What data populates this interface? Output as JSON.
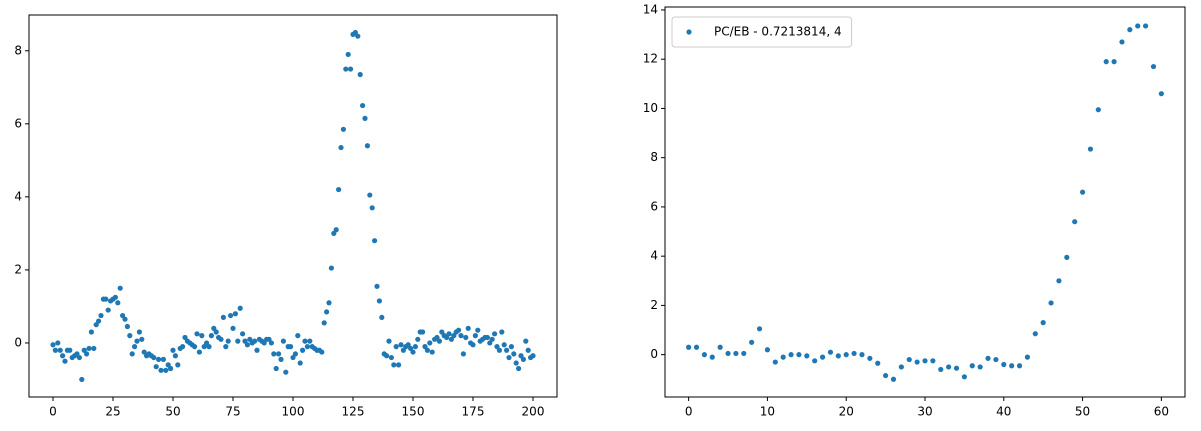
{
  "chart_data": [
    {
      "type": "scatter",
      "legend": false,
      "xlim": [
        -10,
        210
      ],
      "ylim": [
        -1.48,
        8.98
      ],
      "xticks": [
        0,
        25,
        50,
        75,
        100,
        125,
        150,
        175,
        200
      ],
      "yticks": [
        0,
        2,
        4,
        6,
        8
      ],
      "series": [
        {
          "color": "#1f77b4",
          "x": [
            0,
            1,
            2,
            3,
            4,
            5,
            6,
            7,
            8,
            9,
            10,
            11,
            12,
            13,
            14,
            15,
            16,
            17,
            18,
            19,
            20,
            21,
            22,
            23,
            24,
            25,
            26,
            27,
            28,
            29,
            30,
            31,
            32,
            33,
            34,
            35,
            36,
            37,
            38,
            39,
            40,
            41,
            42,
            43,
            44,
            45,
            46,
            47,
            48,
            49,
            50,
            51,
            52,
            53,
            54,
            55,
            56,
            57,
            58,
            59,
            60,
            61,
            62,
            63,
            64,
            65,
            66,
            67,
            68,
            69,
            70,
            71,
            72,
            73,
            74,
            75,
            76,
            77,
            78,
            79,
            80,
            81,
            82,
            83,
            84,
            85,
            86,
            87,
            88,
            89,
            90,
            91,
            92,
            93,
            94,
            95,
            96,
            97,
            98,
            99,
            100,
            101,
            102,
            103,
            104,
            105,
            106,
            107,
            108,
            109,
            110,
            111,
            112,
            113,
            114,
            115,
            116,
            117,
            118,
            119,
            120,
            121,
            122,
            123,
            124,
            125,
            126,
            127,
            128,
            129,
            130,
            131,
            132,
            133,
            134,
            135,
            136,
            137,
            138,
            139,
            140,
            141,
            142,
            143,
            144,
            145,
            146,
            147,
            148,
            149,
            150,
            151,
            152,
            153,
            154,
            155,
            156,
            157,
            158,
            159,
            160,
            161,
            162,
            163,
            164,
            165,
            166,
            167,
            168,
            169,
            170,
            171,
            172,
            173,
            174,
            175,
            176,
            177,
            178,
            179,
            180,
            181,
            182,
            183,
            184,
            185,
            186,
            187,
            188,
            189,
            190,
            191,
            192,
            193,
            194,
            195,
            196,
            197,
            198,
            199,
            200
          ],
          "values": [
            -0.05,
            -0.2,
            0,
            -0.2,
            -0.35,
            -0.5,
            -0.2,
            -0.2,
            -0.4,
            -0.35,
            -0.3,
            -0.4,
            -1.0,
            -0.2,
            -0.3,
            -0.15,
            0.3,
            -0.15,
            0.5,
            0.6,
            0.75,
            1.2,
            1.2,
            0.9,
            1.15,
            1.2,
            1.25,
            1.1,
            1.5,
            0.75,
            0.65,
            0.45,
            0.2,
            -0.3,
            -0.1,
            0.05,
            0.3,
            0.1,
            -0.25,
            -0.35,
            -0.3,
            -0.35,
            -0.4,
            -0.65,
            -0.45,
            -0.75,
            -0.45,
            -0.75,
            -0.6,
            -0.7,
            -0.2,
            -0.35,
            -0.6,
            -0.15,
            -0.1,
            0.15,
            0.05,
            0,
            -0.05,
            -0.1,
            0.25,
            -0.25,
            0.2,
            -0.1,
            0,
            -0.1,
            0.2,
            0.4,
            0.3,
            0.15,
            0.1,
            0.7,
            -0.1,
            0.05,
            0.75,
            0.4,
            0.8,
            0.05,
            0.95,
            0.25,
            0.05,
            -0.05,
            0.1,
            0,
            0.05,
            -0.2,
            0.1,
            0.05,
            0,
            0.1,
            0.1,
            0,
            -0.3,
            -0.7,
            -0.3,
            -0.45,
            0.05,
            -0.8,
            -0.1,
            -0.1,
            -0.4,
            -0.3,
            0.2,
            -0.55,
            -0.2,
            0.05,
            -0.1,
            0.05,
            -0.1,
            -0.15,
            -0.2,
            -0.2,
            -0.25,
            0.55,
            0.85,
            1.1,
            2.05,
            3.0,
            3.1,
            4.2,
            5.35,
            5.85,
            7.5,
            7.9,
            7.5,
            8.45,
            8.5,
            8.4,
            7.35,
            6.5,
            6.15,
            5.4,
            4.05,
            3.7,
            2.8,
            1.55,
            1.15,
            0.7,
            -0.3,
            -0.35,
            0.05,
            -0.4,
            -0.6,
            -0.1,
            -0.6,
            -0.05,
            -0.2,
            -0.1,
            -0.05,
            -0.15,
            -0.25,
            -0.1,
            0.1,
            0.3,
            0.3,
            -0.1,
            -0.2,
            0,
            -0.25,
            0.1,
            0.15,
            0.05,
            0.3,
            0.2,
            0.15,
            0.25,
            0.1,
            0.2,
            0.3,
            0.35,
            0.2,
            -0.3,
            0.15,
            0.4,
            0,
            -0.05,
            0.2,
            0.35,
            0.05,
            0.1,
            0.15,
            0.15,
            0,
            0.1,
            0.25,
            -0.1,
            -0.2,
            0.3,
            -0.05,
            -0.2,
            -0.4,
            -0.1,
            -0.3,
            -0.55,
            -0.7,
            -0.35,
            -0.45,
            0.05,
            -0.2,
            -0.4,
            -0.35
          ]
        }
      ]
    },
    {
      "type": "scatter",
      "legend": "upper left",
      "xlim": [
        -3,
        63
      ],
      "ylim": [
        -1.72,
        14.12
      ],
      "xticks": [
        0,
        10,
        20,
        30,
        40,
        50,
        60
      ],
      "yticks": [
        0,
        2,
        4,
        6,
        8,
        10,
        12,
        14
      ],
      "series": [
        {
          "name": "PC/EB - 0.7213814, 4",
          "color": "#1f77b4",
          "x": [
            0,
            1,
            2,
            3,
            4,
            5,
            6,
            7,
            8,
            9,
            10,
            11,
            12,
            13,
            14,
            15,
            16,
            17,
            18,
            19,
            20,
            21,
            22,
            23,
            24,
            25,
            26,
            27,
            28,
            29,
            30,
            31,
            32,
            33,
            34,
            35,
            36,
            37,
            38,
            39,
            40,
            41,
            42,
            43,
            44,
            45,
            46,
            47,
            48,
            49,
            50,
            51,
            52,
            53,
            54,
            55,
            56,
            57,
            58,
            59,
            60
          ],
          "values": [
            0.3,
            0.3,
            0,
            -0.1,
            0.3,
            0.05,
            0.05,
            0.05,
            0.5,
            1.05,
            0.2,
            -0.3,
            -0.1,
            0,
            0,
            -0.05,
            -0.25,
            -0.1,
            0.1,
            -0.05,
            0,
            0.05,
            0,
            -0.15,
            -0.35,
            -0.85,
            -1.0,
            -0.5,
            -0.2,
            -0.3,
            -0.25,
            -0.25,
            -0.6,
            -0.5,
            -0.55,
            -0.9,
            -0.45,
            -0.5,
            -0.15,
            -0.2,
            -0.4,
            -0.45,
            -0.45,
            -0.1,
            0.85,
            1.3,
            2.1,
            3.0,
            3.95,
            5.4,
            6.6,
            8.35,
            9.95,
            11.9,
            11.9,
            12.7,
            13.2,
            13.35,
            13.35,
            11.7,
            10.6
          ]
        }
      ]
    }
  ]
}
